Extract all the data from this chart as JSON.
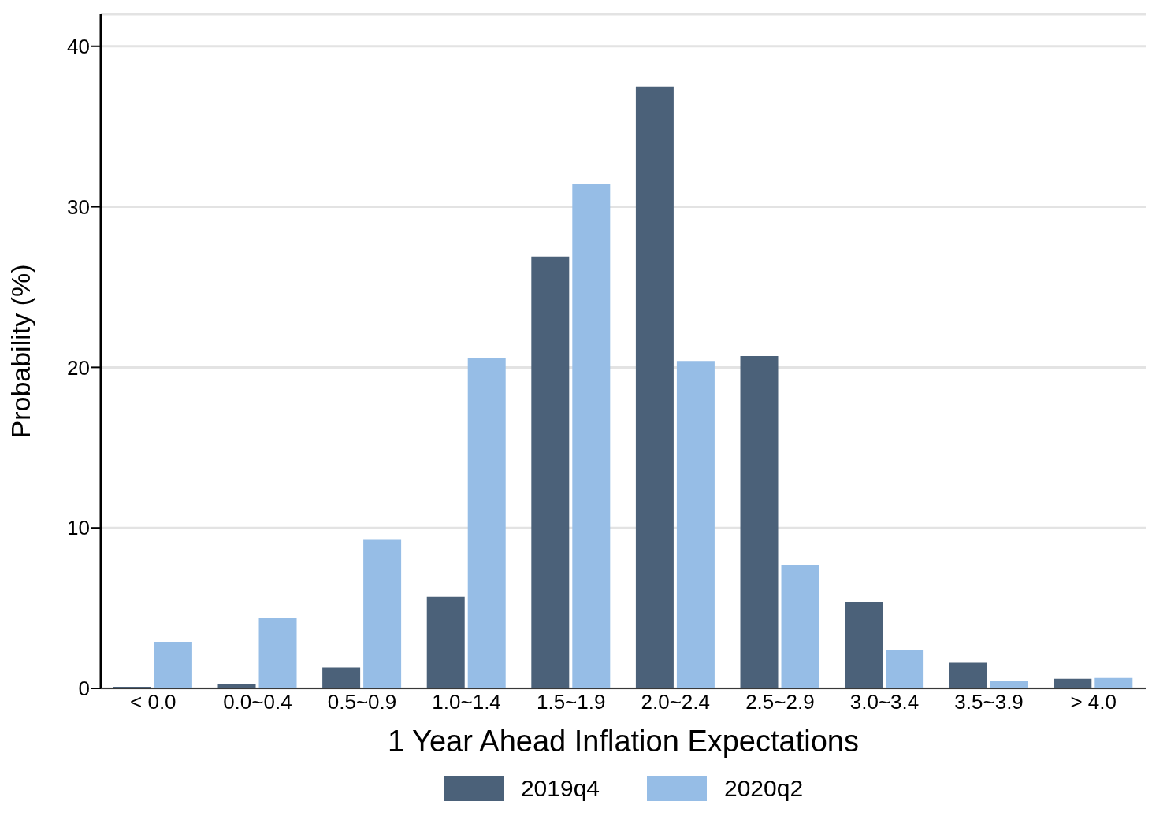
{
  "chart_data": {
    "type": "bar",
    "xlabel": "1 Year Ahead Inflation Expectations",
    "ylabel": "Probability (%)",
    "categories": [
      "< 0.0",
      "0.0~0.4",
      "0.5~0.9",
      "1.0~1.4",
      "1.5~1.9",
      "2.0~2.4",
      "2.5~2.9",
      "3.0~3.4",
      "3.5~3.9",
      "> 4.0"
    ],
    "series": [
      {
        "name": "2019q4",
        "color": "#4b6179",
        "values": [
          0.1,
          0.3,
          1.3,
          5.7,
          26.9,
          37.5,
          20.7,
          5.4,
          1.6,
          0.6
        ]
      },
      {
        "name": "2020q2",
        "color": "#96bde6",
        "values": [
          2.9,
          4.4,
          9.3,
          20.6,
          31.4,
          20.4,
          7.7,
          2.4,
          0.45,
          0.65
        ]
      }
    ],
    "ylim": [
      0,
      42
    ],
    "yticks": [
      0,
      10,
      20,
      30,
      40
    ],
    "grid": "y",
    "legend": "bottom"
  }
}
